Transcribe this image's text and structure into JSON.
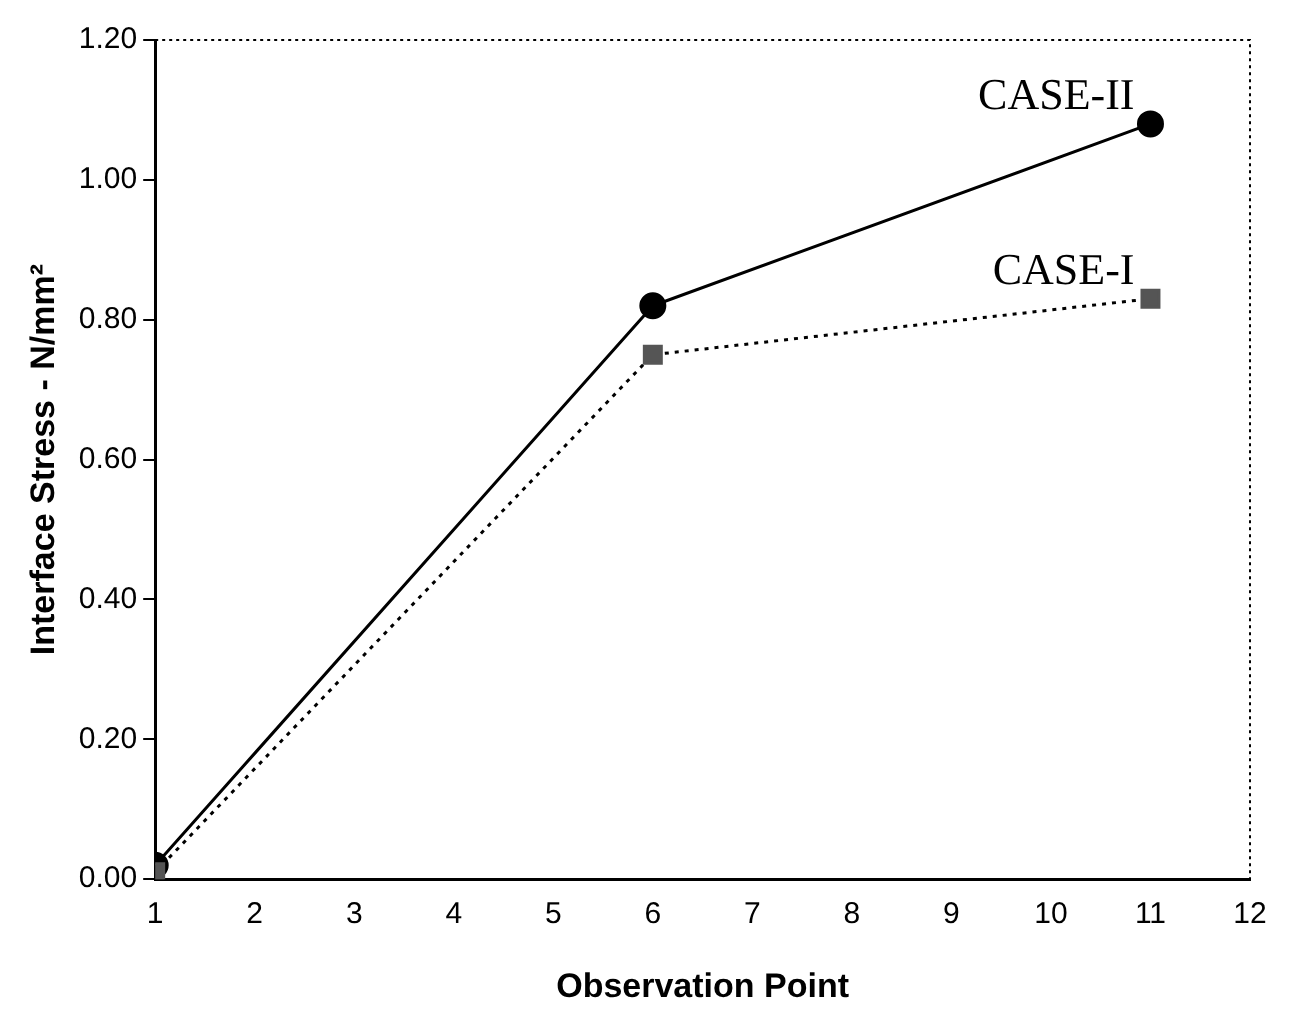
{
  "chart_data": {
    "type": "line",
    "xlabel": "Observation Point",
    "ylabel": "Interface Stress - N/mm²",
    "xlim": [
      1,
      12
    ],
    "xticks": [
      1,
      2,
      3,
      4,
      5,
      6,
      7,
      8,
      9,
      10,
      11,
      12
    ],
    "ylim": [
      0,
      1.2
    ],
    "yticks": [
      {
        "value": 0,
        "label": "0.00"
      },
      {
        "value": 0.2,
        "label": "0.20"
      },
      {
        "value": 0.4,
        "label": "0.40"
      },
      {
        "value": 0.6,
        "label": "0.60"
      },
      {
        "value": 0.8,
        "label": "0.80"
      },
      {
        "value": 1.0,
        "label": "1.00"
      },
      {
        "value": 1.2,
        "label": "1.20"
      }
    ],
    "grid": false,
    "legend": false,
    "series": [
      {
        "name": "CASE-II",
        "color": "#000000",
        "x": [
          1,
          6,
          11
        ],
        "values": [
          0.02,
          0.82,
          1.08
        ],
        "marker": "circle",
        "line_style": "solid"
      },
      {
        "name": "CASE-I",
        "color": "#555555",
        "x": [
          1,
          6,
          11
        ],
        "values": [
          0.01,
          0.75,
          0.83
        ],
        "marker": "square",
        "line_style": "dotted"
      }
    ]
  }
}
